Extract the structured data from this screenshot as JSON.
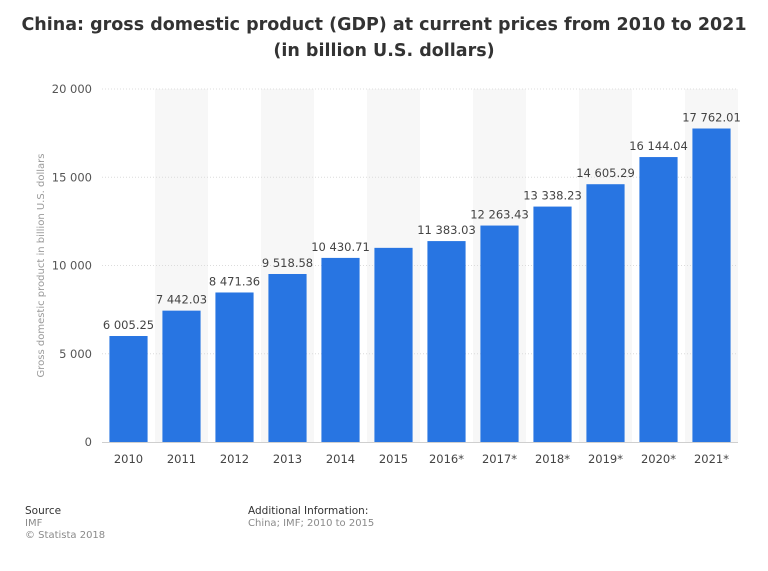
{
  "chart_data": {
    "type": "bar",
    "title": "China: gross domestic product (GDP) at current prices from 2010 to 2021 (in billion U.S. dollars)",
    "ylabel": "Gross domestic product in billion U.S. dollars",
    "xlabel": "",
    "ylim": [
      0,
      20000
    ],
    "yticks": [
      0,
      5000,
      10000,
      15000,
      20000
    ],
    "ytick_labels": [
      "0",
      "5 000",
      "10 000",
      "15 000",
      "20 000"
    ],
    "categories": [
      "2010",
      "2011",
      "2012",
      "2013",
      "2014",
      "2015",
      "2016*",
      "2017*",
      "2018*",
      "2019*",
      "2020*",
      "2021*"
    ],
    "values": [
      6005.25,
      7442.03,
      8471.36,
      9518.58,
      10430.71,
      11000,
      11383.03,
      12263.43,
      13338.23,
      14605.29,
      16144.04,
      17762.01
    ],
    "data_labels": [
      "6 005.25",
      "7 442.03",
      "8 471.36",
      "9 518.58",
      "10 430.71",
      "",
      "11 383.03",
      "12 263.43",
      "13 338.23",
      "14 605.29",
      "16 144.04",
      "17 762.01"
    ],
    "bar_color": "#2875e2",
    "grid": true,
    "legend": "none"
  },
  "footer": {
    "source_heading": "Source",
    "source_lines": [
      "IMF",
      "© Statista 2018"
    ],
    "info_heading": "Additional Information:",
    "info_text": "China; IMF; 2010 to 2015"
  }
}
